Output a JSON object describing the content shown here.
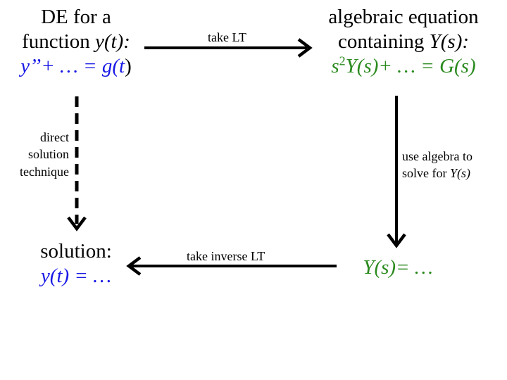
{
  "top_left": {
    "line1": "DE for a",
    "line2_prefix": "function ",
    "line2_var": "y(t):",
    "equation_left": "y’’+ … = g(",
    "equation_var": "t",
    "equation_right": ")"
  },
  "top_right": {
    "line1": "algebraic equation",
    "line2_prefix": "containing ",
    "line2_var": "Y(s):",
    "eq_s": "s",
    "eq_exp": "2",
    "eq_rest": "Y(s)+ … = G(s)"
  },
  "bottom_left": {
    "line1": "solution:",
    "line2": "y(t) = …"
  },
  "bottom_right": {
    "line1": "Y(s)= …"
  },
  "arrows": {
    "top_label": "take LT",
    "right_label_line1": "use algebra to",
    "right_label_line2_prefix": "solve for ",
    "right_label_line2_var": "Y(s)",
    "bottom_label": "take inverse LT",
    "left_label_line1": "direct",
    "left_label_line2": "solution",
    "left_label_line3": "technique"
  },
  "colors": {
    "blue": "#1a1ae6",
    "green": "#2a8a1e",
    "black": "#000000"
  }
}
